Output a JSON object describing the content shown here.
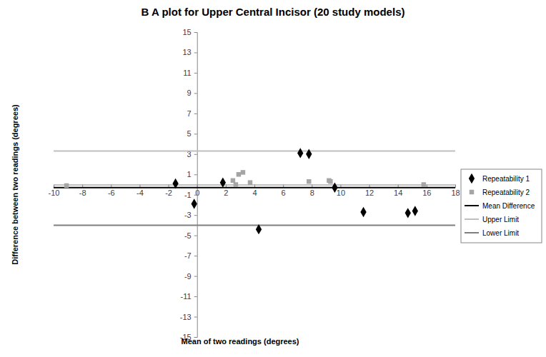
{
  "chart_data": {
    "type": "scatter",
    "title": "B A plot for Upper Central Incisor (20 study models)",
    "x_label": "Mean of two readings (degrees)",
    "y_label": "Difference between two readings (degrees)",
    "xlim": [
      -10,
      18
    ],
    "xticks": [
      -10,
      -8,
      -6,
      -4,
      -2,
      0,
      2,
      4,
      6,
      8,
      10,
      12,
      14,
      16,
      18
    ],
    "ylim": [
      -15,
      15
    ],
    "yticks": [
      15,
      13,
      11,
      9,
      7,
      5,
      3,
      1,
      -1,
      -3,
      -5,
      -7,
      -9,
      -11,
      -13,
      -15
    ],
    "grid": false,
    "legend": "right",
    "series": [
      {
        "name": "Repeatability 1",
        "type": "scatter",
        "marker": "diamond",
        "color": "#000000",
        "x": [
          -1.5,
          1.8,
          -0.2,
          4.3,
          7.2,
          7.8,
          9.6,
          11.6,
          14.7,
          15.2
        ],
        "values": [
          0.1,
          0.2,
          -1.9,
          -4.4,
          3.1,
          3.0,
          -0.3,
          -2.7,
          -2.8,
          -2.6
        ]
      },
      {
        "name": "Repeatability 2",
        "type": "scatter",
        "marker": "square",
        "color": "#a5a5a5",
        "x": [
          -9.1,
          2.5,
          2.7,
          2.9,
          3.2,
          3.7,
          7.8,
          9.2,
          9.3,
          15.8
        ],
        "values": [
          -0.1,
          0.4,
          0.0,
          1.0,
          1.2,
          0.2,
          0.3,
          0.4,
          0.3,
          0.0
        ]
      },
      {
        "name": "Mean Difference",
        "type": "line",
        "line_style": "solid",
        "color": "#000000",
        "x": [
          -10,
          18
        ],
        "values": [
          -0.3,
          -0.3
        ]
      },
      {
        "name": "Upper Limit",
        "type": "line",
        "line_style": "solid",
        "color": "#bfbfbf",
        "x": [
          -10,
          18
        ],
        "values": [
          3.3,
          3.3
        ]
      },
      {
        "name": "Lower Limit",
        "type": "line",
        "line_style": "solid",
        "color": "#7f7f7f",
        "x": [
          -10,
          18
        ],
        "values": [
          -4.0,
          -4.0
        ]
      }
    ]
  }
}
